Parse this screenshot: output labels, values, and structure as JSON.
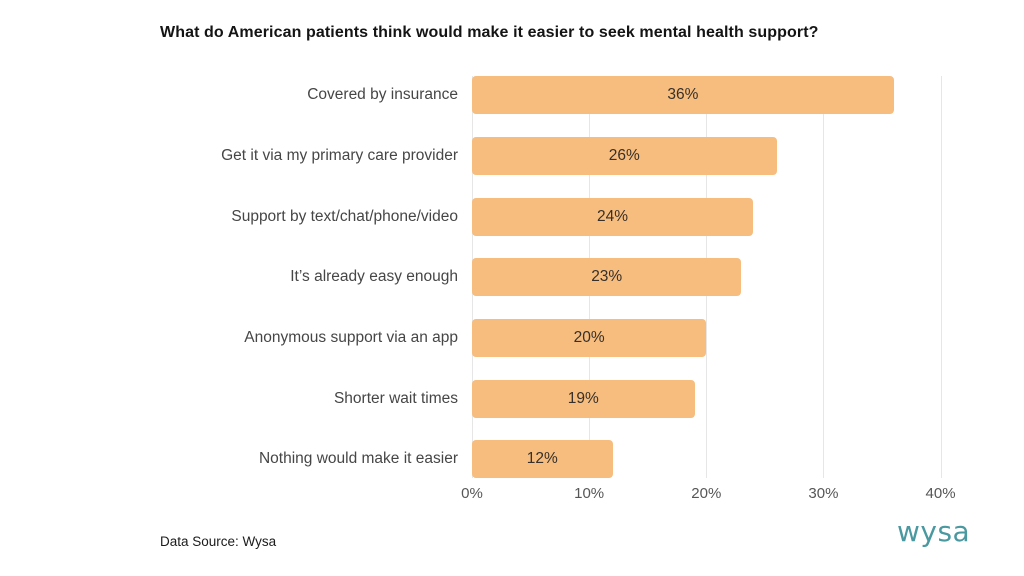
{
  "chart_data": {
    "type": "bar",
    "orientation": "horizontal",
    "title": "What do American patients think would make it easier to seek mental health support?",
    "categories": [
      "Covered by insurance",
      "Get it via my primary care provider",
      "Support by text/chat/phone/video",
      "It’s already easy enough",
      "Anonymous support via an app",
      "Shorter wait times",
      "Nothing would make it easier"
    ],
    "values": [
      36,
      26,
      24,
      23,
      20,
      19,
      12
    ],
    "value_labels": [
      "36%",
      "26%",
      "24%",
      "23%",
      "20%",
      "19%",
      "12%"
    ],
    "x_ticks": [
      {
        "value": 0,
        "label": "0%"
      },
      {
        "value": 10,
        "label": "10%"
      },
      {
        "value": 20,
        "label": "20%"
      },
      {
        "value": 30,
        "label": "30%"
      },
      {
        "value": 40,
        "label": "40%"
      }
    ],
    "xlim": [
      0,
      45.5
    ],
    "xlabel": "",
    "ylabel": "",
    "grid": "vertical",
    "legend": "none",
    "bar_color": "#F6BD7E"
  },
  "colors": {
    "bar": "#F6BD7E",
    "gridline": "#E6E6E6",
    "logo": "#4A98A0",
    "value_text": "#37302a",
    "category_text": "#464646",
    "tick_text": "#565656"
  },
  "footer": {
    "data_source": "Data Source: Wysa",
    "logo_text": "wysa"
  }
}
